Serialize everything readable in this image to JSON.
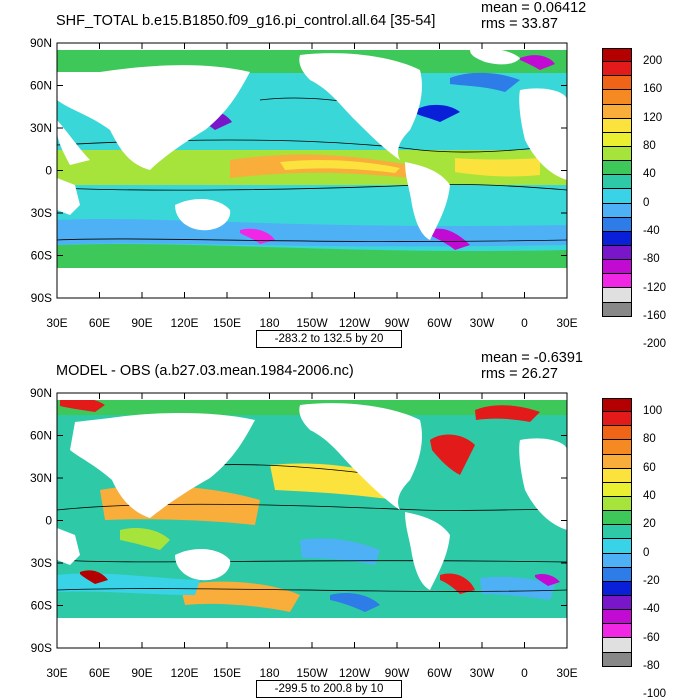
{
  "panels": [
    {
      "title": "SHF_TOTAL b.e15.B1850.f09_g16.pi_control.all.64 [35-54]",
      "mean_text": "mean = 0.06412",
      "rms_text": "rms = 33.87",
      "range_text": "-283.2 to 132.5 by 20",
      "colorbar_labels": [
        "200",
        "160",
        "120",
        "80",
        "40",
        "0",
        "-40",
        "-80",
        "-120",
        "-160",
        "-200"
      ],
      "colorbar_colors": [
        "#b40000",
        "#e21a1a",
        "#f06418",
        "#f58a22",
        "#f9ad3a",
        "#fce23c",
        "#eaf031",
        "#a6e33b",
        "#3ec85a",
        "#2ec9a7",
        "#38d3e6",
        "#4fb1f5",
        "#2d7ce8",
        "#0a20d8",
        "#7a16c9",
        "#c20bd2",
        "#f028e6",
        "#e0e0e0",
        "#888888"
      ]
    },
    {
      "title": "MODEL - OBS (a.b27.03.mean.1984-2006.nc)",
      "mean_text": "mean = -0.6391",
      "rms_text": "rms = 26.27",
      "range_text": "-299.5 to 200.8 by 10",
      "colorbar_labels": [
        "100",
        "80",
        "60",
        "40",
        "20",
        "0",
        "-20",
        "-40",
        "-60",
        "-80",
        "-100"
      ],
      "colorbar_colors": [
        "#b40000",
        "#e21a1a",
        "#f06418",
        "#f58a22",
        "#f9ad3a",
        "#fce23c",
        "#eaf031",
        "#a6e33b",
        "#3ec85a",
        "#2ec9a7",
        "#38d3e6",
        "#4fb1f5",
        "#2d7ce8",
        "#0a20d8",
        "#7a16c9",
        "#c20bd2",
        "#f028e6",
        "#e0e0e0",
        "#888888"
      ]
    }
  ],
  "lat_labels": [
    "90N",
    "60N",
    "30N",
    "0",
    "30S",
    "60S",
    "90S"
  ],
  "lon_labels": [
    "30E",
    "60E",
    "90E",
    "120E",
    "150E",
    "180",
    "150W",
    "120W",
    "90W",
    "60W",
    "30W",
    "0",
    "30E"
  ]
}
